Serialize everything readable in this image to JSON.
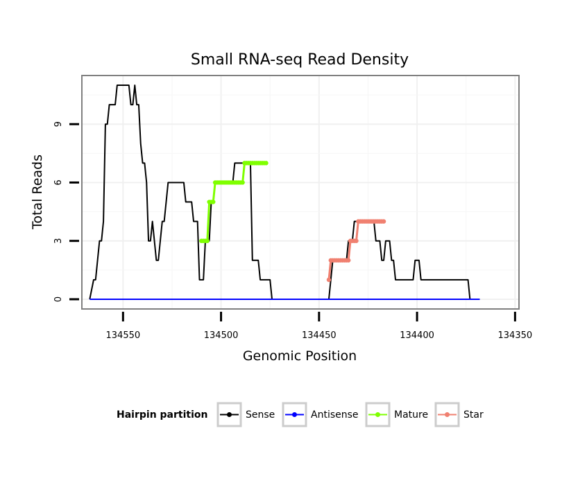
{
  "chart_data": {
    "type": "line",
    "title": "Small RNA-seq Read Density",
    "xlabel": "Genomic Position",
    "ylabel": "Total Reads",
    "x_reversed": true,
    "xlim": [
      134571,
      134348
    ],
    "ylim": [
      -0.5,
      11.5
    ],
    "x_ticks": [
      134550,
      134500,
      134450,
      134400,
      134350
    ],
    "y_ticks": [
      0,
      3,
      6,
      9
    ],
    "grid": true,
    "legend": {
      "title": "Hairpin partition",
      "position": "bottom",
      "entries": [
        {
          "label": "Sense",
          "color": "#000000"
        },
        {
          "label": "Antisense",
          "color": "#0000ff"
        },
        {
          "label": "Mature",
          "color": "#7fff00"
        },
        {
          "label": "Star",
          "color": "#f08070"
        }
      ]
    },
    "series": [
      {
        "name": "Sense",
        "color": "#000000",
        "marker": false,
        "points": [
          [
            134567,
            0
          ],
          [
            134565,
            1
          ],
          [
            134564,
            1
          ],
          [
            134563,
            2
          ],
          [
            134562,
            3
          ],
          [
            134561,
            3
          ],
          [
            134560,
            4
          ],
          [
            134559,
            9
          ],
          [
            134558,
            9
          ],
          [
            134557,
            10
          ],
          [
            134556,
            10
          ],
          [
            134555,
            10
          ],
          [
            134554,
            10
          ],
          [
            134553,
            11
          ],
          [
            134552,
            11
          ],
          [
            134551,
            11
          ],
          [
            134550,
            11
          ],
          [
            134549,
            11
          ],
          [
            134548,
            11
          ],
          [
            134547,
            11
          ],
          [
            134546,
            10
          ],
          [
            134545,
            10
          ],
          [
            134544,
            11
          ],
          [
            134543,
            10
          ],
          [
            134542,
            10
          ],
          [
            134541,
            8
          ],
          [
            134540,
            7
          ],
          [
            134539,
            7
          ],
          [
            134538,
            6
          ],
          [
            134537,
            3
          ],
          [
            134536,
            3
          ],
          [
            134535,
            4
          ],
          [
            134534,
            3
          ],
          [
            134533,
            2
          ],
          [
            134532,
            2
          ],
          [
            134531,
            3
          ],
          [
            134530,
            4
          ],
          [
            134529,
            4
          ],
          [
            134528,
            5
          ],
          [
            134527,
            6
          ],
          [
            134526,
            6
          ],
          [
            134525,
            6
          ],
          [
            134524,
            6
          ],
          [
            134523,
            6
          ],
          [
            134522,
            6
          ],
          [
            134521,
            6
          ],
          [
            134520,
            6
          ],
          [
            134519,
            6
          ],
          [
            134518,
            5
          ],
          [
            134517,
            5
          ],
          [
            134516,
            5
          ],
          [
            134515,
            5
          ],
          [
            134514,
            4
          ],
          [
            134513,
            4
          ],
          [
            134512,
            4
          ],
          [
            134511,
            1
          ],
          [
            134510,
            1
          ],
          [
            134509,
            1
          ],
          [
            134508,
            3
          ],
          [
            134507,
            3
          ],
          [
            134506,
            3
          ],
          [
            134505,
            5
          ],
          [
            134504,
            5
          ],
          [
            134503,
            6
          ],
          [
            134502,
            6
          ],
          [
            134501,
            6
          ],
          [
            134500,
            6
          ],
          [
            134499,
            6
          ],
          [
            134498,
            6
          ],
          [
            134497,
            6
          ],
          [
            134496,
            6
          ],
          [
            134495,
            6
          ],
          [
            134494,
            6
          ],
          [
            134493,
            7
          ],
          [
            134492,
            7
          ],
          [
            134491,
            7
          ],
          [
            134490,
            7
          ],
          [
            134489,
            7
          ],
          [
            134488,
            7
          ],
          [
            134487,
            7
          ],
          [
            134486,
            7
          ],
          [
            134485,
            7
          ],
          [
            134484,
            2
          ],
          [
            134483,
            2
          ],
          [
            134482,
            2
          ],
          [
            134481,
            2
          ],
          [
            134480,
            1
          ],
          [
            134479,
            1
          ],
          [
            134478,
            1
          ],
          [
            134477,
            1
          ],
          [
            134476,
            1
          ],
          [
            134475,
            1
          ],
          [
            134474,
            0
          ],
          [
            134466,
            0
          ],
          [
            134460,
            0
          ],
          [
            134445,
            0
          ],
          [
            134444,
            1
          ],
          [
            134443,
            2
          ],
          [
            134442,
            2
          ],
          [
            134441,
            2
          ],
          [
            134440,
            2
          ],
          [
            134439,
            2
          ],
          [
            134438,
            2
          ],
          [
            134437,
            2
          ],
          [
            134436,
            2
          ],
          [
            134435,
            3
          ],
          [
            134434,
            3
          ],
          [
            134433,
            3
          ],
          [
            134432,
            4
          ],
          [
            134431,
            4
          ],
          [
            134430,
            4
          ],
          [
            134429,
            4
          ],
          [
            134428,
            4
          ],
          [
            134427,
            4
          ],
          [
            134426,
            4
          ],
          [
            134425,
            4
          ],
          [
            134424,
            4
          ],
          [
            134423,
            4
          ],
          [
            134422,
            4
          ],
          [
            134421,
            3
          ],
          [
            134420,
            3
          ],
          [
            134419,
            3
          ],
          [
            134418,
            2
          ],
          [
            134417,
            2
          ],
          [
            134416,
            3
          ],
          [
            134415,
            3
          ],
          [
            134414,
            3
          ],
          [
            134413,
            2
          ],
          [
            134412,
            2
          ],
          [
            134411,
            1
          ],
          [
            134410,
            1
          ],
          [
            134409,
            1
          ],
          [
            134408,
            1
          ],
          [
            134405,
            1
          ],
          [
            134402,
            1
          ],
          [
            134401,
            2
          ],
          [
            134400,
            2
          ],
          [
            134399,
            2
          ],
          [
            134398,
            1
          ],
          [
            134395,
            1
          ],
          [
            134390,
            1
          ],
          [
            134385,
            1
          ],
          [
            134380,
            1
          ],
          [
            134375,
            1
          ],
          [
            134374,
            1
          ],
          [
            134373,
            0
          ],
          [
            134368,
            0
          ]
        ]
      },
      {
        "name": "Antisense",
        "color": "#0000ff",
        "marker": false,
        "points": [
          [
            134567,
            0
          ],
          [
            134368,
            0
          ]
        ]
      },
      {
        "name": "Mature",
        "color": "#7fff00",
        "marker": true,
        "points": [
          [
            134510,
            3
          ],
          [
            134509,
            3
          ],
          [
            134508,
            3
          ],
          [
            134507,
            3
          ],
          [
            134506,
            5
          ],
          [
            134505,
            5
          ],
          [
            134504,
            5
          ],
          [
            134503,
            6
          ],
          [
            134502,
            6
          ],
          [
            134501,
            6
          ],
          [
            134500,
            6
          ],
          [
            134499,
            6
          ],
          [
            134498,
            6
          ],
          [
            134497,
            6
          ],
          [
            134496,
            6
          ],
          [
            134495,
            6
          ],
          [
            134494,
            6
          ],
          [
            134493,
            6
          ],
          [
            134492,
            6
          ],
          [
            134491,
            6
          ],
          [
            134490,
            6
          ],
          [
            134489,
            6
          ],
          [
            134488,
            7
          ],
          [
            134487,
            7
          ],
          [
            134486,
            7
          ],
          [
            134485,
            7
          ],
          [
            134484,
            7
          ],
          [
            134483,
            7
          ],
          [
            134482,
            7
          ],
          [
            134481,
            7
          ],
          [
            134480,
            7
          ],
          [
            134479,
            7
          ],
          [
            134478,
            7
          ],
          [
            134477,
            7
          ]
        ]
      },
      {
        "name": "Star",
        "color": "#f08070",
        "marker": true,
        "points": [
          [
            134445,
            1
          ],
          [
            134444,
            2
          ],
          [
            134443,
            2
          ],
          [
            134442,
            2
          ],
          [
            134441,
            2
          ],
          [
            134440,
            2
          ],
          [
            134439,
            2
          ],
          [
            134438,
            2
          ],
          [
            134437,
            2
          ],
          [
            134436,
            2
          ],
          [
            134435,
            2
          ],
          [
            134434,
            3
          ],
          [
            134433,
            3
          ],
          [
            134432,
            3
          ],
          [
            134431,
            3
          ],
          [
            134430,
            4
          ],
          [
            134429,
            4
          ],
          [
            134428,
            4
          ],
          [
            134427,
            4
          ],
          [
            134426,
            4
          ],
          [
            134425,
            4
          ],
          [
            134424,
            4
          ],
          [
            134423,
            4
          ],
          [
            134422,
            4
          ],
          [
            134421,
            4
          ],
          [
            134420,
            4
          ],
          [
            134419,
            4
          ],
          [
            134418,
            4
          ],
          [
            134417,
            4
          ]
        ]
      }
    ]
  }
}
